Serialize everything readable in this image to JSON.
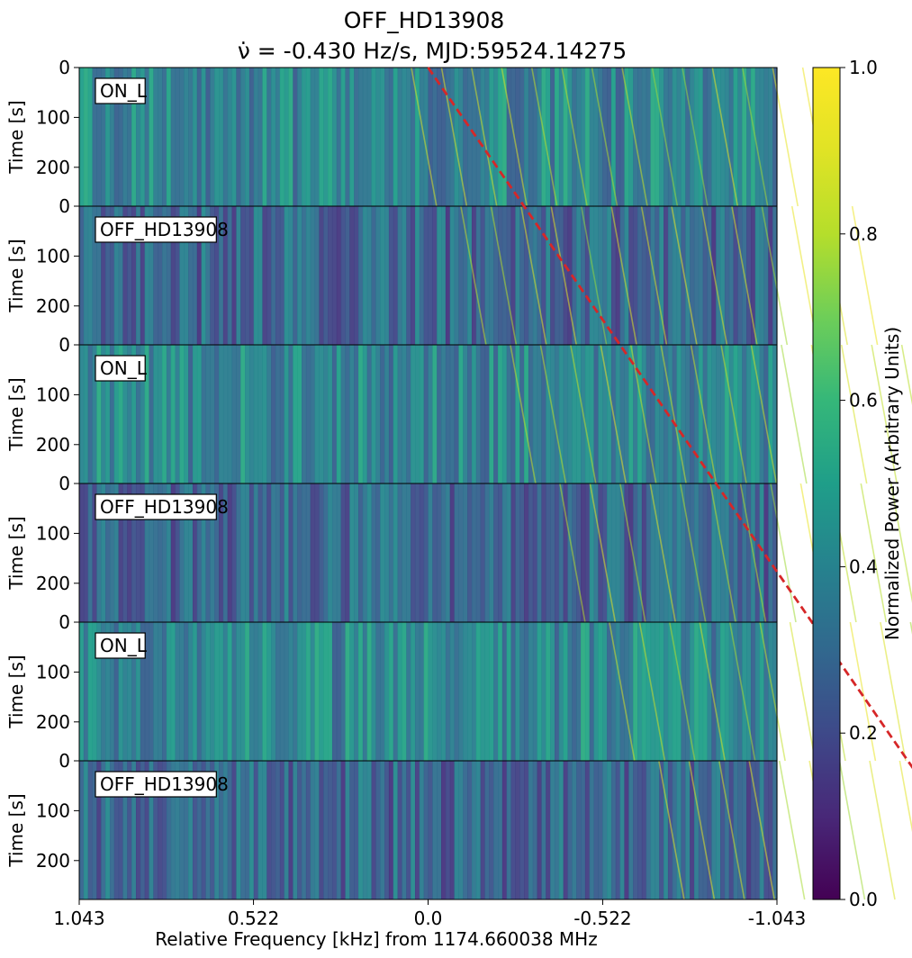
{
  "chart_data": {
    "type": "heatmap",
    "title": "OFF_HD13908",
    "subtitle": "ν̇ = -0.430 Hz/s, MJD:59524.14275",
    "xlabel": "Relative Frequency [kHz] from 1174.660038 MHz",
    "ylabel": "Time [s]",
    "xlim": [
      1.043,
      -1.043
    ],
    "x_ticks": [
      "1.043",
      "0.522",
      "0.0",
      "-0.522",
      "-1.043"
    ],
    "x_tick_values": [
      1.043,
      0.522,
      0.0,
      -0.522,
      -1.043
    ],
    "ylim": [
      0,
      278
    ],
    "y_ticks": [
      "0",
      "100",
      "200"
    ],
    "y_tick_values": [
      0,
      100,
      200
    ],
    "last_panel_y_ticks": [
      "0",
      "100",
      "200"
    ],
    "panels": [
      {
        "label": "ON_L"
      },
      {
        "label": "OFF_HD13908"
      },
      {
        "label": "ON_L"
      },
      {
        "label": "OFF_HD13908"
      },
      {
        "label": "ON_L"
      },
      {
        "label": "OFF_HD13908"
      }
    ],
    "drift_line": {
      "drift_rate_hz_per_s": -0.43,
      "start_freq_khz": 0.0,
      "color": "#d62728",
      "style": "dashed"
    },
    "colorbar": {
      "label": "Normalized Power (Arbitrary Units)",
      "range": [
        0.0,
        1.0
      ],
      "ticks": [
        "0.0",
        "0.2",
        "0.4",
        "0.6",
        "0.8",
        "1.0"
      ],
      "tick_values": [
        0.0,
        0.2,
        0.4,
        0.6,
        0.8,
        1.0
      ],
      "colormap": "viridis"
    }
  }
}
